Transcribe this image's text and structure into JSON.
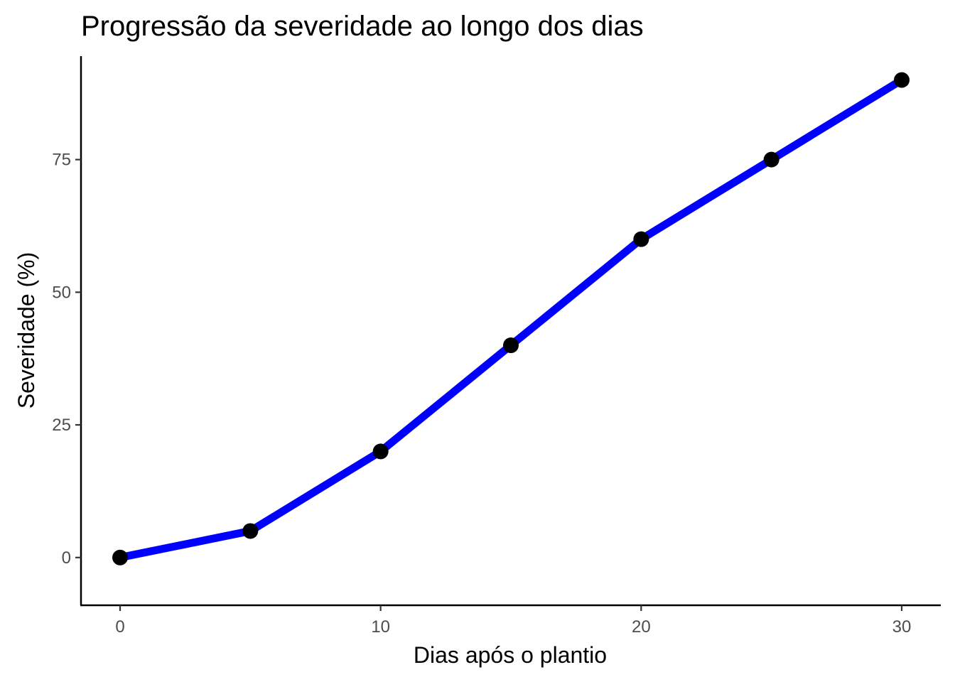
{
  "chart_data": {
    "type": "line",
    "title": "Progressão da severidade ao longo dos dias",
    "xlabel": "Dias após o plantio",
    "ylabel": "Severidade (%)",
    "xlim": [
      -1.5,
      31.5
    ],
    "ylim": [
      -9,
      94.5
    ],
    "xticks": [
      0,
      10,
      20,
      30
    ],
    "yticks": [
      0,
      25,
      50,
      75
    ],
    "xtick_labels": [
      "0",
      "10",
      "20",
      "30"
    ],
    "ytick_labels": [
      "0",
      "25",
      "50",
      "75"
    ],
    "grid": false,
    "series": [
      {
        "x": [
          0,
          5,
          10,
          15,
          20,
          25,
          30
        ],
        "y": [
          0,
          5,
          20,
          40,
          60,
          75,
          90
        ],
        "line_color": "#0000ff",
        "marker_color": "#000000"
      }
    ]
  }
}
